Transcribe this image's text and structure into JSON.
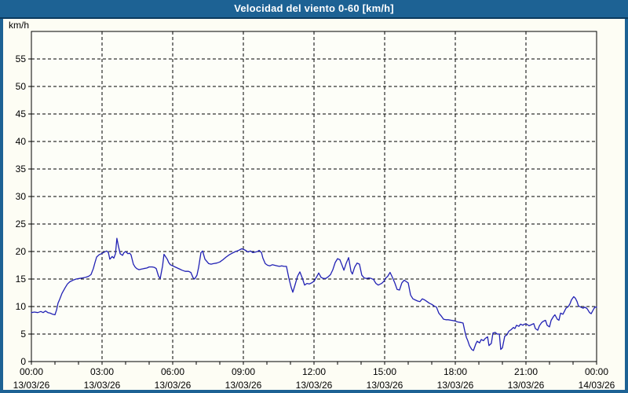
{
  "window": {
    "title": "Velocidad del viento 0-60 [km/h]"
  },
  "colors": {
    "frame": "#1d6294",
    "frame_edge": "#0c3a5e",
    "background": "#fdfdf4",
    "plot_background": "#fdfef8",
    "grid": "#000000",
    "axis": "#000000",
    "label_text": "#000000",
    "title_text": "#ffffff",
    "line": "#2121b4"
  },
  "chart_data": {
    "type": "line",
    "title": "Velocidad del viento 0-60 [km/h]",
    "ylabel": "km/h",
    "ylim": [
      0,
      60
    ],
    "yticks": [
      0,
      5,
      10,
      15,
      20,
      25,
      30,
      35,
      40,
      45,
      50,
      55
    ],
    "xlim_hours": [
      0,
      24
    ],
    "grid": "dashed",
    "minor_xtick_every_hours": 1,
    "xticks": [
      {
        "hour": 0,
        "time": "00:00",
        "date": "13/03/26"
      },
      {
        "hour": 3,
        "time": "03:00",
        "date": "13/03/26"
      },
      {
        "hour": 6,
        "time": "06:00",
        "date": "13/03/26"
      },
      {
        "hour": 9,
        "time": "09:00",
        "date": "13/03/26"
      },
      {
        "hour": 12,
        "time": "12:00",
        "date": "13/03/26"
      },
      {
        "hour": 15,
        "time": "15:00",
        "date": "13/03/26"
      },
      {
        "hour": 18,
        "time": "18:00",
        "date": "13/03/26"
      },
      {
        "hour": 21,
        "time": "21:00",
        "date": "13/03/26"
      },
      {
        "hour": 24,
        "time": "00:00",
        "date": "14/03/26"
      }
    ],
    "series": [
      {
        "name": "Velocidad del viento",
        "unit": "km/h",
        "color": "#2121b4",
        "points": [
          [
            0,
            8.9
          ],
          [
            0.13,
            9.0
          ],
          [
            0.27,
            8.9
          ],
          [
            0.4,
            9.1
          ],
          [
            0.5,
            8.9
          ],
          [
            0.6,
            9.2
          ],
          [
            0.7,
            8.9
          ],
          [
            0.8,
            8.8
          ],
          [
            0.9,
            8.6
          ],
          [
            1.0,
            8.5
          ],
          [
            1.07,
            9.4
          ],
          [
            1.13,
            10.6
          ],
          [
            1.2,
            11.3
          ],
          [
            1.3,
            12.4
          ],
          [
            1.43,
            13.4
          ],
          [
            1.53,
            14.1
          ],
          [
            1.63,
            14.5
          ],
          [
            1.77,
            14.8
          ],
          [
            1.9,
            15.0
          ],
          [
            2.03,
            15.1
          ],
          [
            2.17,
            15.2
          ],
          [
            2.3,
            15.3
          ],
          [
            2.43,
            15.5
          ],
          [
            2.53,
            15.8
          ],
          [
            2.63,
            16.9
          ],
          [
            2.7,
            18.0
          ],
          [
            2.77,
            19.0
          ],
          [
            2.87,
            19.4
          ],
          [
            2.97,
            19.6
          ],
          [
            3.1,
            19.9
          ],
          [
            3.2,
            20.1
          ],
          [
            3.27,
            19.8
          ],
          [
            3.33,
            18.6
          ],
          [
            3.43,
            19.1
          ],
          [
            3.5,
            18.8
          ],
          [
            3.57,
            19.6
          ],
          [
            3.63,
            22.4
          ],
          [
            3.7,
            20.9
          ],
          [
            3.77,
            19.6
          ],
          [
            3.87,
            19.3
          ],
          [
            3.93,
            19.8
          ],
          [
            4.0,
            20.0
          ],
          [
            4.1,
            19.6
          ],
          [
            4.17,
            19.7
          ],
          [
            4.23,
            19.4
          ],
          [
            4.33,
            17.7
          ],
          [
            4.4,
            17.2
          ],
          [
            4.47,
            16.9
          ],
          [
            4.57,
            16.7
          ],
          [
            4.67,
            16.8
          ],
          [
            4.77,
            16.9
          ],
          [
            4.9,
            17.0
          ],
          [
            5.0,
            17.2
          ],
          [
            5.13,
            17.2
          ],
          [
            5.23,
            17.1
          ],
          [
            5.3,
            16.9
          ],
          [
            5.4,
            15.5
          ],
          [
            5.47,
            15.1
          ],
          [
            5.57,
            17.4
          ],
          [
            5.63,
            19.5
          ],
          [
            5.77,
            18.6
          ],
          [
            5.83,
            18.0
          ],
          [
            5.9,
            17.6
          ],
          [
            6.0,
            17.4
          ],
          [
            6.1,
            17.2
          ],
          [
            6.2,
            17.0
          ],
          [
            6.3,
            16.8
          ],
          [
            6.4,
            16.6
          ],
          [
            6.53,
            16.4
          ],
          [
            6.67,
            16.4
          ],
          [
            6.77,
            16.2
          ],
          [
            6.87,
            15.2
          ],
          [
            6.93,
            15.0
          ],
          [
            7.03,
            15.7
          ],
          [
            7.1,
            17.1
          ],
          [
            7.2,
            19.8
          ],
          [
            7.27,
            20.1
          ],
          [
            7.37,
            18.6
          ],
          [
            7.47,
            18.1
          ],
          [
            7.53,
            17.8
          ],
          [
            7.63,
            17.7
          ],
          [
            7.73,
            17.8
          ],
          [
            7.87,
            17.9
          ],
          [
            8.0,
            18.1
          ],
          [
            8.13,
            18.5
          ],
          [
            8.27,
            19.0
          ],
          [
            8.4,
            19.4
          ],
          [
            8.53,
            19.7
          ],
          [
            8.67,
            20.0
          ],
          [
            8.8,
            20.2
          ],
          [
            8.93,
            20.5
          ],
          [
            9.0,
            20.4
          ],
          [
            9.1,
            20.2
          ],
          [
            9.2,
            19.9
          ],
          [
            9.3,
            20.1
          ],
          [
            9.4,
            19.8
          ],
          [
            9.5,
            19.9
          ],
          [
            9.6,
            20.0
          ],
          [
            9.67,
            20.2
          ],
          [
            9.77,
            19.8
          ],
          [
            9.83,
            18.8
          ],
          [
            9.93,
            17.8
          ],
          [
            10.03,
            17.5
          ],
          [
            10.13,
            17.4
          ],
          [
            10.23,
            17.6
          ],
          [
            10.33,
            17.5
          ],
          [
            10.43,
            17.4
          ],
          [
            10.53,
            17.3
          ],
          [
            10.63,
            17.4
          ],
          [
            10.73,
            17.3
          ],
          [
            10.83,
            17.3
          ],
          [
            10.93,
            15.2
          ],
          [
            11.03,
            13.5
          ],
          [
            11.1,
            12.6
          ],
          [
            11.2,
            14.0
          ],
          [
            11.3,
            15.5
          ],
          [
            11.4,
            16.3
          ],
          [
            11.5,
            15.2
          ],
          [
            11.6,
            13.9
          ],
          [
            11.7,
            14.2
          ],
          [
            11.8,
            14.1
          ],
          [
            11.9,
            14.3
          ],
          [
            12.0,
            14.6
          ],
          [
            12.1,
            15.3
          ],
          [
            12.2,
            16.1
          ],
          [
            12.3,
            15.3
          ],
          [
            12.4,
            15.1
          ],
          [
            12.5,
            15.1
          ],
          [
            12.6,
            15.4
          ],
          [
            12.7,
            15.8
          ],
          [
            12.8,
            16.7
          ],
          [
            12.9,
            18.0
          ],
          [
            13.0,
            18.7
          ],
          [
            13.1,
            18.5
          ],
          [
            13.2,
            17.4
          ],
          [
            13.27,
            16.6
          ],
          [
            13.37,
            17.9
          ],
          [
            13.47,
            18.9
          ],
          [
            13.57,
            16.4
          ],
          [
            13.63,
            15.9
          ],
          [
            13.73,
            17.2
          ],
          [
            13.83,
            17.9
          ],
          [
            13.93,
            17.7
          ],
          [
            14.03,
            15.7
          ],
          [
            14.13,
            15.2
          ],
          [
            14.23,
            15.1
          ],
          [
            14.33,
            15.2
          ],
          [
            14.43,
            15.1
          ],
          [
            14.53,
            14.9
          ],
          [
            14.63,
            14.2
          ],
          [
            14.73,
            13.9
          ],
          [
            14.87,
            14.2
          ],
          [
            14.97,
            14.6
          ],
          [
            15.03,
            15.1
          ],
          [
            15.13,
            15.5
          ],
          [
            15.23,
            16.2
          ],
          [
            15.33,
            15.3
          ],
          [
            15.43,
            14.3
          ],
          [
            15.53,
            13.1
          ],
          [
            15.63,
            13.0
          ],
          [
            15.73,
            14.3
          ],
          [
            15.83,
            14.8
          ],
          [
            15.93,
            14.5
          ],
          [
            16.0,
            14.3
          ],
          [
            16.1,
            12.1
          ],
          [
            16.2,
            11.4
          ],
          [
            16.3,
            11.2
          ],
          [
            16.4,
            11.0
          ],
          [
            16.5,
            10.9
          ],
          [
            16.6,
            11.4
          ],
          [
            16.7,
            11.2
          ],
          [
            16.8,
            10.9
          ],
          [
            16.9,
            10.6
          ],
          [
            17.0,
            10.4
          ],
          [
            17.1,
            10.1
          ],
          [
            17.2,
            9.9
          ],
          [
            17.3,
            8.8
          ],
          [
            17.4,
            8.3
          ],
          [
            17.5,
            7.7
          ],
          [
            17.6,
            7.6
          ],
          [
            17.7,
            7.6
          ],
          [
            17.83,
            7.5
          ],
          [
            17.97,
            7.4
          ],
          [
            18.1,
            7.2
          ],
          [
            18.23,
            7.1
          ],
          [
            18.33,
            7.0
          ],
          [
            18.4,
            5.6
          ],
          [
            18.47,
            4.4
          ],
          [
            18.53,
            3.8
          ],
          [
            18.6,
            2.9
          ],
          [
            18.7,
            2.2
          ],
          [
            18.77,
            2.0
          ],
          [
            18.87,
            3.2
          ],
          [
            18.93,
            3.7
          ],
          [
            19.03,
            3.4
          ],
          [
            19.1,
            4.0
          ],
          [
            19.2,
            3.8
          ],
          [
            19.27,
            4.2
          ],
          [
            19.37,
            4.5
          ],
          [
            19.43,
            2.9
          ],
          [
            19.53,
            3.3
          ],
          [
            19.6,
            5.2
          ],
          [
            19.7,
            5.3
          ],
          [
            19.77,
            5.0
          ],
          [
            19.87,
            5.0
          ],
          [
            19.93,
            2.2
          ],
          [
            20.0,
            2.5
          ],
          [
            20.1,
            4.6
          ],
          [
            20.2,
            4.9
          ],
          [
            20.27,
            5.5
          ],
          [
            20.37,
            5.8
          ],
          [
            20.47,
            6.2
          ],
          [
            20.53,
            6.0
          ],
          [
            20.6,
            6.6
          ],
          [
            20.7,
            6.4
          ],
          [
            20.77,
            6.8
          ],
          [
            20.87,
            6.6
          ],
          [
            20.93,
            6.8
          ],
          [
            21.03,
            6.8
          ],
          [
            21.13,
            6.5
          ],
          [
            21.23,
            6.7
          ],
          [
            21.33,
            6.9
          ],
          [
            21.4,
            6.0
          ],
          [
            21.5,
            5.7
          ],
          [
            21.57,
            6.5
          ],
          [
            21.67,
            7.1
          ],
          [
            21.73,
            7.3
          ],
          [
            21.83,
            7.5
          ],
          [
            21.9,
            6.6
          ],
          [
            22.0,
            6.3
          ],
          [
            22.07,
            7.5
          ],
          [
            22.17,
            8.2
          ],
          [
            22.23,
            8.5
          ],
          [
            22.33,
            7.7
          ],
          [
            22.4,
            7.5
          ],
          [
            22.47,
            8.8
          ],
          [
            22.57,
            8.6
          ],
          [
            22.63,
            9.1
          ],
          [
            22.7,
            9.7
          ],
          [
            22.8,
            10.0
          ],
          [
            22.87,
            10.5
          ],
          [
            22.93,
            11.2
          ],
          [
            23.03,
            11.8
          ],
          [
            23.1,
            11.5
          ],
          [
            23.17,
            10.9
          ],
          [
            23.23,
            10.1
          ],
          [
            23.33,
            9.9
          ],
          [
            23.43,
            9.7
          ],
          [
            23.5,
            9.9
          ],
          [
            23.6,
            9.6
          ],
          [
            23.7,
            8.9
          ],
          [
            23.77,
            8.7
          ],
          [
            23.87,
            9.5
          ],
          [
            23.93,
            9.9
          ],
          [
            24.0,
            9.9
          ]
        ]
      }
    ]
  }
}
